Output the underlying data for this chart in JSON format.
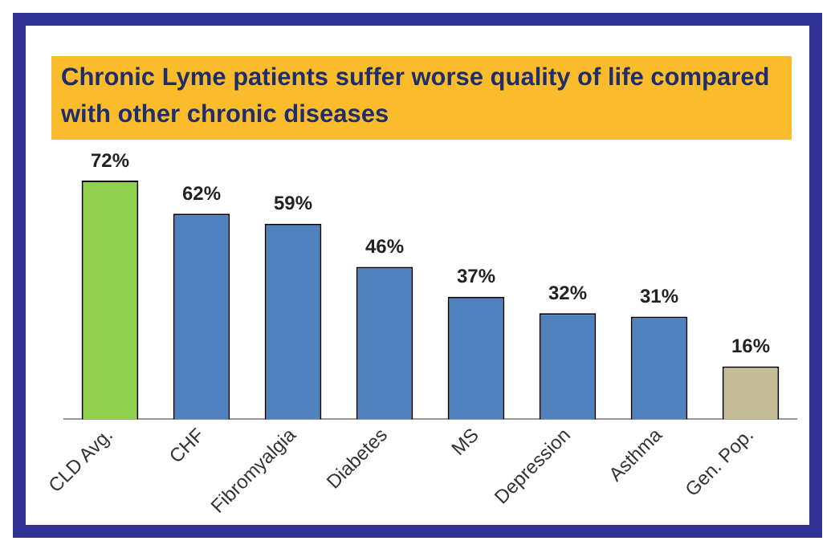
{
  "chart_data": {
    "type": "bar",
    "title": "Chronic Lyme patients suffer worse quality of life compared with other chronic diseases",
    "categories": [
      "CLD Avg.",
      "CHF",
      "Fibromyalgia",
      "Diabetes",
      "MS",
      "Depression",
      "Asthma",
      "Gen. Pop."
    ],
    "values": [
      72,
      62,
      59,
      46,
      37,
      32,
      31,
      16
    ],
    "colors": [
      "#92d050",
      "#4f81bd",
      "#4f81bd",
      "#4f81bd",
      "#4f81bd",
      "#4f81bd",
      "#4f81bd",
      "#c4bd97"
    ],
    "value_labels": [
      "72%",
      "62%",
      "59%",
      "46%",
      "37%",
      "32%",
      "31%",
      "16%"
    ],
    "relative": false,
    "grid": false,
    "legend": false
  }
}
